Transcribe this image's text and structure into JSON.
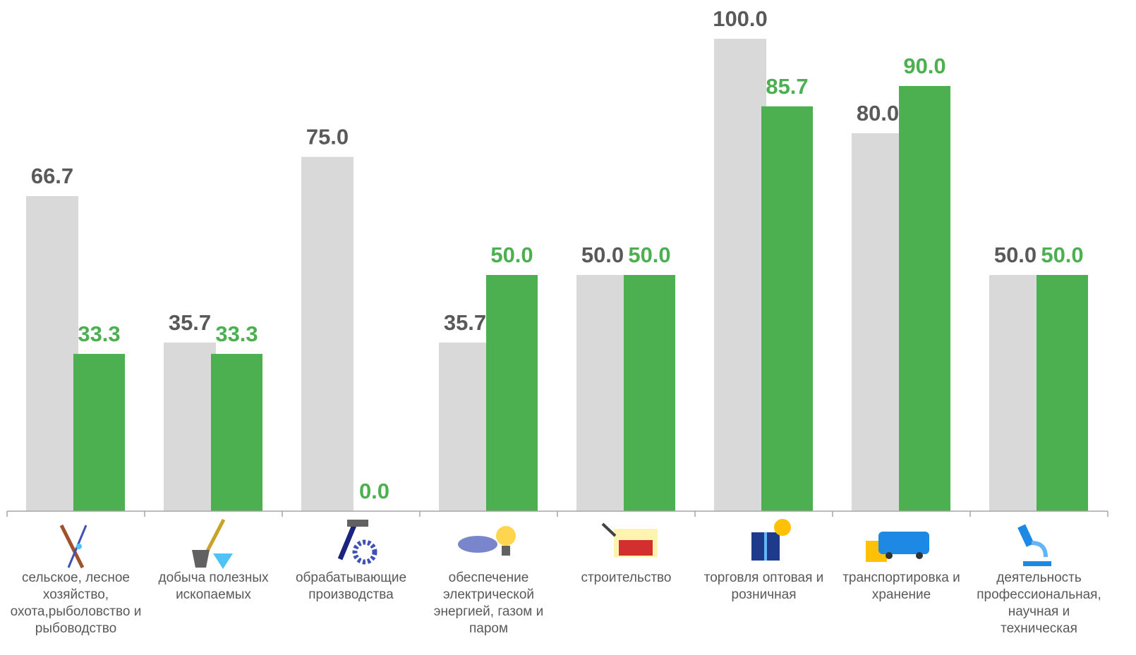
{
  "chart_data": {
    "type": "bar",
    "categories": [
      "сельское, лесное хозяйство, охота,рыболовство и рыбоводство",
      "добыча полезных ископаемых",
      "обрабатывающие производства",
      "обеспечение электрической энергией, газом и паром",
      "строительство",
      "торговля оптовая и розничная",
      "транспортировка и хранение",
      "деятельность профессиональная, научная и техническая"
    ],
    "series": [
      {
        "color": "#d9d9d9",
        "label_color": "#595959",
        "values": [
          66.7,
          35.7,
          75.0,
          35.7,
          50.0,
          100.0,
          80.0,
          50.0
        ],
        "value_labels": [
          "66.7",
          "35.7",
          "75.0",
          "35.7",
          "50.0",
          "100.0",
          "80.0",
          "50.0"
        ]
      },
      {
        "color": "#4caf50",
        "label_color": "#4caf50",
        "values": [
          33.3,
          33.3,
          0.0,
          50.0,
          50.0,
          85.7,
          90.0,
          50.0
        ],
        "value_labels": [
          "33.3",
          "33.3",
          "0.0",
          "50.0",
          "50.0",
          "85.7",
          "90.0",
          "50.0"
        ]
      }
    ],
    "ylim": [
      0,
      100
    ]
  }
}
